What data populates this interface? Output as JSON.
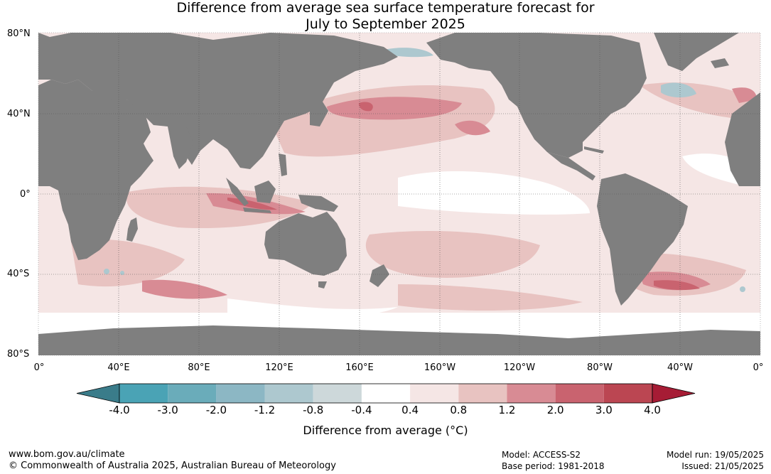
{
  "title": {
    "line1": "Difference from average sea surface temperature forecast for",
    "line2": "July to September 2025"
  },
  "lat_labels": [
    "80°N",
    "40°N",
    "0°",
    "40°S",
    "80°S"
  ],
  "lon_labels": [
    "0°",
    "40°E",
    "80°E",
    "120°E",
    "160°E",
    "160°W",
    "120°W",
    "80°W",
    "40°W",
    "0°"
  ],
  "colorbar": {
    "title": "Difference from average (°C)",
    "tick_labels": [
      "-4.0",
      "-3.0",
      "-2.0",
      "-1.2",
      "-0.8",
      "-0.4",
      "0.4",
      "0.8",
      "1.2",
      "2.0",
      "3.0",
      "4.0"
    ],
    "colors": [
      "#3a7c8a",
      "#4aa3b5",
      "#6aacba",
      "#8cb7c4",
      "#adc8cf",
      "#cdd8da",
      "#ffffff",
      "#f5e6e5",
      "#e8c3c1",
      "#d88b94",
      "#c9636f",
      "#bb4652",
      "#a61c35"
    ]
  },
  "footer": {
    "url": "www.bom.gov.au/climate",
    "copyright": "© Commonwealth of Australia 2025, Australian Bureau of Meteorology",
    "model": "Model: ACCESS-S2",
    "base_period": "Base period: 1981-2018",
    "model_run": "Model run: 19/05/2025",
    "issued": "Issued: 21/05/2025"
  },
  "map_colors": {
    "land": "#7f7f7f",
    "ocean_base": "#f5e6e5",
    "neutral": "#ffffff",
    "warm_1": "#e8c3c1",
    "warm_2": "#d88b94",
    "warm_3": "#c9636f",
    "cool_1": "#adc8cf"
  }
}
